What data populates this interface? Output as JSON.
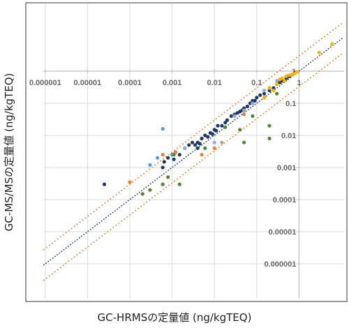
{
  "chart_data": {
    "type": "scatter",
    "title": "",
    "xlabel": "GC-HRMSの定量値 (ng/kgTEQ)",
    "ylabel": "GC-MS/MSの定量値 (ng/kgTEQ)",
    "scale": "log",
    "xlim": [
      1e-07,
      10
    ],
    "ylim": [
      1e-07,
      10
    ],
    "x_ticks": [
      "0.000001",
      "0.00001",
      "0.0001",
      "0.001",
      "0.01",
      "0.1",
      "1"
    ],
    "y_ticks": [
      "1",
      "0.1",
      "0.01",
      "0.001",
      "0.0001",
      "0.00001",
      "0.000001"
    ],
    "grid": true,
    "legend": "none",
    "reference_lines": [
      {
        "name": "1:1",
        "factor": 1,
        "color": "#2f4a75",
        "style": "dotted"
      },
      {
        "name": "upper",
        "factor": 3,
        "color": "#ed7d31",
        "style": "dotted"
      },
      {
        "name": "lower",
        "factor": 0.3333,
        "color": "#ed7d31",
        "style": "dotted"
      }
    ],
    "series": [
      {
        "color": "#1f3864",
        "points": [
          [
            4e-07,
            0.0004
          ],
          [
            2.5e-05,
            0.0003
          ],
          [
            0.0006,
            0.001
          ],
          [
            0.00065,
            0.0015
          ],
          [
            0.0008,
            0.002
          ],
          [
            0.001,
            0.0025
          ],
          [
            0.0011,
            0.0018
          ],
          [
            0.0012,
            0.003
          ],
          [
            0.0015,
            0.0025
          ],
          [
            0.002,
            0.004
          ],
          [
            0.0025,
            0.005
          ],
          [
            0.003,
            0.006
          ],
          [
            0.0035,
            0.005
          ],
          [
            0.004,
            0.006
          ],
          [
            0.005,
            0.008
          ],
          [
            0.006,
            0.01
          ],
          [
            0.007,
            0.009
          ],
          [
            0.008,
            0.012
          ],
          [
            0.01,
            0.015
          ],
          [
            0.012,
            0.02
          ],
          [
            0.015,
            0.02
          ],
          [
            0.02,
            0.03
          ],
          [
            0.025,
            0.04
          ],
          [
            0.03,
            0.045
          ],
          [
            0.035,
            0.05
          ],
          [
            0.04,
            0.055
          ],
          [
            0.05,
            0.07
          ],
          [
            0.06,
            0.08
          ],
          [
            0.07,
            0.1
          ],
          [
            0.08,
            0.12
          ],
          [
            0.1,
            0.15
          ],
          [
            0.12,
            0.18
          ],
          [
            0.15,
            0.2
          ],
          [
            0.2,
            0.25
          ],
          [
            0.25,
            0.3
          ],
          [
            0.3,
            0.4
          ],
          [
            0.4,
            0.5
          ],
          [
            0.5,
            0.6
          ],
          [
            0.6,
            0.7
          ],
          [
            0.7,
            0.8
          ],
          [
            0.8,
            0.9
          ],
          [
            0.004,
            0.004
          ],
          [
            0.0045,
            0.0055
          ],
          [
            0.009,
            0.011
          ],
          [
            0.011,
            0.014
          ],
          [
            0.018,
            0.025
          ],
          [
            0.045,
            0.06
          ],
          [
            0.09,
            0.12
          ],
          [
            0.35,
            0.45
          ],
          [
            0.55,
            0.7
          ]
        ]
      },
      {
        "color": "#5b9bd5",
        "points": [
          [
            0.0003,
            0.0012
          ],
          [
            0.00045,
            0.002
          ],
          [
            0.0006,
            0.016
          ],
          [
            0.001,
            0.0025
          ]
        ]
      },
      {
        "color": "#8faadc",
        "points": [
          [
            0.002,
            0.004
          ],
          [
            0.01,
            0.006
          ],
          [
            0.03,
            0.04
          ],
          [
            0.08,
            0.1
          ],
          [
            0.15,
            0.25
          ],
          [
            0.3,
            0.5
          ],
          [
            0.5,
            0.7
          ]
        ]
      },
      {
        "color": "#a5a5a5",
        "points": [
          [
            0.015,
            0.006
          ],
          [
            0.05,
            0.06
          ],
          [
            0.2,
            0.3
          ]
        ]
      },
      {
        "color": "#548235",
        "points": [
          [
            0.0002,
            0.00015
          ],
          [
            0.0003,
            0.0002
          ],
          [
            0.0006,
            0.0003
          ],
          [
            0.0008,
            0.0005
          ],
          [
            0.0011,
            0.0025
          ],
          [
            0.0015,
            0.0003
          ],
          [
            0.006,
            0.004
          ],
          [
            0.018,
            0.018
          ],
          [
            0.04,
            0.015
          ],
          [
            0.05,
            0.006
          ],
          [
            0.08,
            0.04
          ],
          [
            0.15,
            0.15
          ],
          [
            0.2,
            0.02
          ],
          [
            0.2,
            0.008
          ],
          [
            0.3,
            0.2
          ]
        ]
      },
      {
        "color": "#ed7d31",
        "points": [
          [
            0.0001,
            0.00035
          ],
          [
            0.0006,
            0.0025
          ],
          [
            0.0012,
            0.003
          ],
          [
            0.005,
            0.0025
          ],
          [
            0.01,
            0.004
          ],
          [
            0.05,
            0.045
          ]
        ]
      },
      {
        "color": "#f4b400",
        "points": [
          [
            3,
            3.8
          ],
          [
            6,
            7
          ],
          [
            0.4,
            0.6
          ],
          [
            0.5,
            0.7
          ],
          [
            0.6,
            0.75
          ],
          [
            0.7,
            0.8
          ],
          [
            0.3,
            0.4
          ],
          [
            0.35,
            0.55
          ],
          [
            0.25,
            0.25
          ],
          [
            0.45,
            0.5
          ],
          [
            0.2,
            0.3
          ],
          [
            0.15,
            0.15
          ],
          [
            0.8,
            0.85
          ],
          [
            0.9,
            0.95
          ]
        ]
      }
    ]
  }
}
